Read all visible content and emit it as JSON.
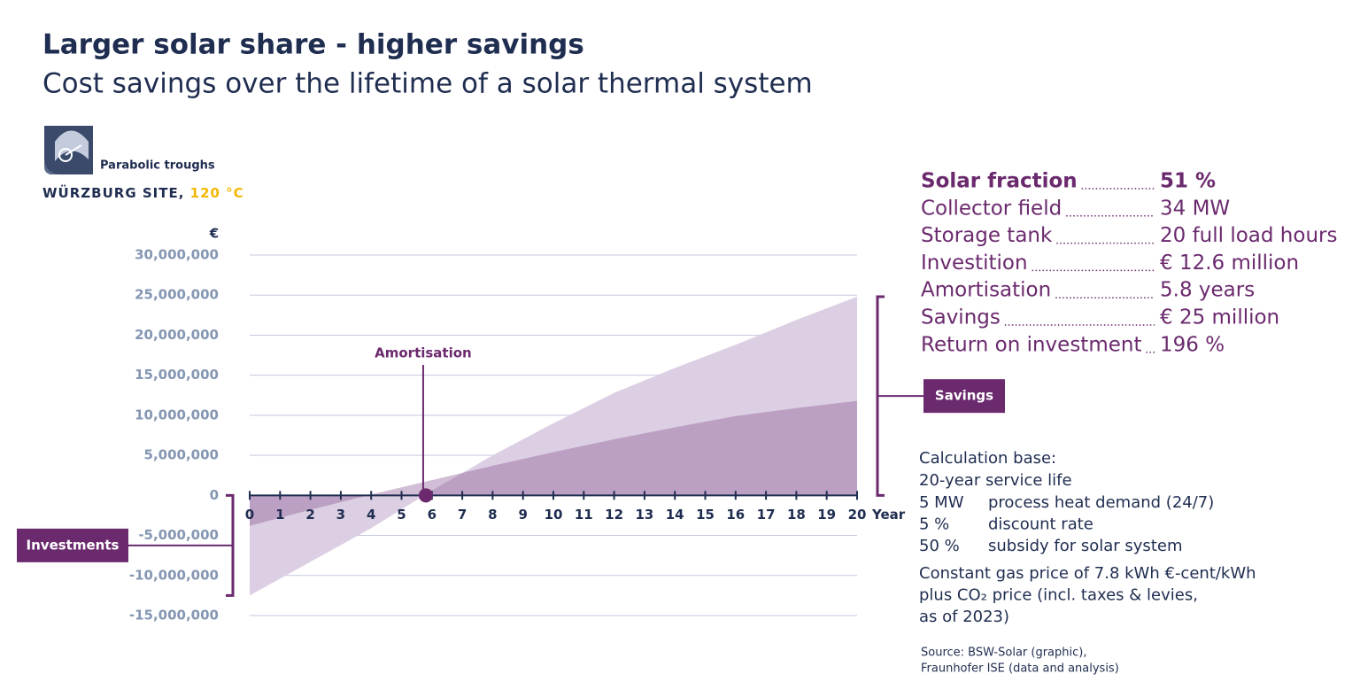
{
  "header": {
    "title": "Larger solar share - higher savings",
    "subtitle": "Cost savings over the lifetime of a solar thermal system"
  },
  "site": {
    "technology": "Parabolic troughs",
    "name": "WÜRZBURG SITE, ",
    "temperature": "120 °C"
  },
  "chart_data": {
    "type": "area",
    "y_unit": "€",
    "x_label": "Year",
    "x": [
      0,
      2,
      4,
      6,
      8,
      10,
      12,
      14,
      16,
      18,
      20
    ],
    "series": [
      {
        "color": "#dccfe3",
        "values": [
          -12500000,
          -8300000,
          -4100000,
          600000,
          5000000,
          9000000,
          12800000,
          15900000,
          18800000,
          21900000,
          24800000
        ]
      },
      {
        "color": "#8c5a97",
        "values": [
          -3800000,
          -1800000,
          100000,
          1900000,
          3700000,
          5400000,
          7000000,
          8500000,
          9900000,
          10900000,
          11800000
        ]
      }
    ],
    "xlim": [
      0,
      20
    ],
    "xticks": [
      0,
      1,
      2,
      3,
      4,
      5,
      6,
      7,
      8,
      9,
      10,
      11,
      12,
      13,
      14,
      15,
      16,
      17,
      18,
      19,
      20
    ],
    "ylim": [
      -15000000,
      30000000
    ],
    "yticks": [
      {
        "value": -15000000,
        "label": "-15,000,000"
      },
      {
        "value": -10000000,
        "label": "-10,000,000"
      },
      {
        "value": -5000000,
        "label": "-5,000,000"
      },
      0,
      {
        "value": 5000000,
        "label": "5,000,000"
      },
      {
        "value": 10000000,
        "label": "10,000,000"
      },
      {
        "value": 15000000,
        "label": "15,000,000"
      },
      {
        "value": 20000000,
        "label": "20,000,000"
      },
      {
        "value": 25000000,
        "label": "25,000,000"
      },
      {
        "value": 30000000,
        "label": "30,000,000"
      }
    ],
    "grid": true,
    "amortisation": {
      "text": "Amortisation",
      "x": 5.8
    },
    "savings_label": "Savings",
    "investments_label": "Investments"
  },
  "key_figures": [
    [
      "Solar fraction",
      "51 %"
    ],
    [
      "Collector field",
      "34 MW"
    ],
    [
      "Storage tank",
      "20 full load hours"
    ],
    [
      "Investition",
      "€ 12.6 million"
    ],
    [
      "Amortisation",
      "5.8 years"
    ],
    [
      "Savings",
      "€ 25 million"
    ],
    [
      "Return on investment",
      "196 %"
    ]
  ],
  "calculation_base": {
    "heading": "Calculation base:",
    "service_life": "20-year service life",
    "rows": [
      [
        "5 MW",
        "process heat demand (24/7)"
      ],
      [
        "5 %",
        "discount rate"
      ],
      [
        "50 %",
        "subsidy for solar system"
      ]
    ],
    "notes": [
      "Constant gas price of 7.8 kWh €-cent/kWh",
      "plus CO₂ price (incl. taxes & levies,",
      "as of 2023)"
    ]
  },
  "source": [
    "Source: BSW-Solar (graphic),",
    "Fraunhofer ISE (data and analysis)"
  ]
}
